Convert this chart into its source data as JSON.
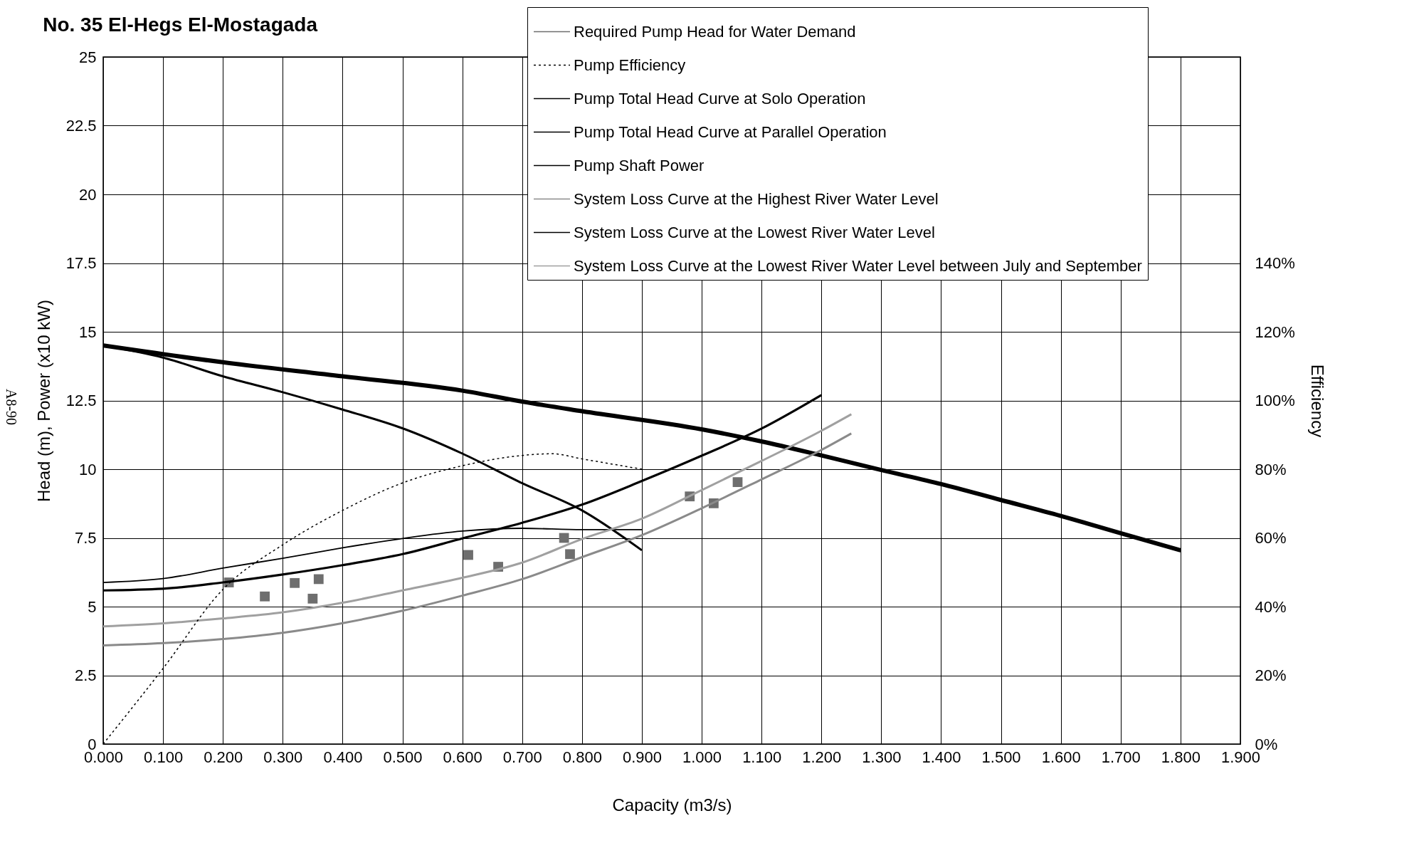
{
  "chart_data": {
    "type": "line",
    "title": "No. 35 El-Hegs El-Mostagada",
    "xlabel": "Capacity (m3/s)",
    "ylabel": "Head (m), Power (x10 kW)",
    "y2label": "Efficiency",
    "xlim": [
      0,
      1.9
    ],
    "xticks": [
      {
        "value": 0,
        "label": "0.000"
      },
      {
        "value": 0.1,
        "label": "0.100"
      },
      {
        "value": 0.2,
        "label": "0.200"
      },
      {
        "value": 0.3,
        "label": "0.300"
      },
      {
        "value": 0.4,
        "label": "0.400"
      },
      {
        "value": 0.5,
        "label": "0.500"
      },
      {
        "value": 0.6,
        "label": "0.600"
      },
      {
        "value": 0.7,
        "label": "0.700"
      },
      {
        "value": 0.8,
        "label": "0.800"
      },
      {
        "value": 0.9,
        "label": "0.900"
      },
      {
        "value": 1.0,
        "label": "1.000"
      },
      {
        "value": 1.1,
        "label": "1.100"
      },
      {
        "value": 1.2,
        "label": "1.200"
      },
      {
        "value": 1.3,
        "label": "1.300"
      },
      {
        "value": 1.4,
        "label": "1.400"
      },
      {
        "value": 1.5,
        "label": "1.500"
      },
      {
        "value": 1.6,
        "label": "1.600"
      },
      {
        "value": 1.7,
        "label": "1.700"
      },
      {
        "value": 1.8,
        "label": "1.800"
      },
      {
        "value": 1.9,
        "label": "1.900"
      }
    ],
    "ylim": [
      0,
      25
    ],
    "yticks": [
      0,
      2.5,
      5,
      7.5,
      10,
      12.5,
      15,
      17.5,
      20,
      22.5,
      25
    ],
    "y2lim": [
      0,
      200
    ],
    "y2ticks": [
      {
        "value": 0,
        "label": "0%"
      },
      {
        "value": 20,
        "label": "20%"
      },
      {
        "value": 40,
        "label": "40%"
      },
      {
        "value": 60,
        "label": "60%"
      },
      {
        "value": 80,
        "label": "80%"
      },
      {
        "value": 100,
        "label": "100%"
      },
      {
        "value": 120,
        "label": "120%"
      },
      {
        "value": 140,
        "label": "140%"
      }
    ],
    "grid": true,
    "legend": "top right",
    "series": [
      {
        "name": "Required Pump Head for Water Demand",
        "type": "scatter",
        "marker": "square",
        "color": "#6e6e6e",
        "x": [
          0.21,
          0.27,
          0.32,
          0.36,
          0.35,
          0.61,
          0.66,
          0.77,
          0.78,
          0.98,
          1.02,
          1.06
        ],
        "values": [
          5.88,
          5.37,
          5.86,
          6.0,
          5.29,
          6.88,
          6.45,
          7.5,
          6.91,
          9.01,
          8.76,
          9.53
        ]
      },
      {
        "name": "Pump Efficiency",
        "type": "line",
        "axis": "y2",
        "line_style": "dotted",
        "color": "#000000",
        "x": [
          0,
          0.1,
          0.2,
          0.3,
          0.4,
          0.5,
          0.6,
          0.7,
          0.75,
          0.8,
          0.9
        ],
        "values": [
          0,
          22,
          45,
          58,
          68,
          76,
          81,
          84,
          84.5,
          83,
          80
        ]
      },
      {
        "name": "Pump Total Head Curve at Solo Operation",
        "type": "line",
        "color": "#000000",
        "x": [
          0,
          0.1,
          0.2,
          0.3,
          0.4,
          0.5,
          0.6,
          0.7,
          0.8,
          0.9
        ],
        "values": [
          14.5,
          14.06,
          13.38,
          12.8,
          12.17,
          11.49,
          10.57,
          9.49,
          8.5,
          7.05
        ]
      },
      {
        "name": "Pump Total Head Curve at Parallel Operation",
        "type": "line",
        "color": "#000000",
        "x": [
          0,
          0.2,
          0.4,
          0.6,
          0.7,
          0.8,
          1.0,
          1.1,
          1.2,
          1.3,
          1.4,
          1.5,
          1.6,
          1.7,
          1.8
        ],
        "values": [
          14.5,
          13.89,
          13.38,
          12.86,
          12.46,
          12.11,
          11.45,
          11.01,
          10.5,
          9.97,
          9.46,
          8.88,
          8.3,
          7.67,
          7.05
        ]
      },
      {
        "name": "Pump Shaft Power",
        "type": "line",
        "color": "#000000",
        "x": [
          0,
          0.1,
          0.2,
          0.3,
          0.4,
          0.5,
          0.6,
          0.7,
          0.8,
          0.9
        ],
        "values": [
          5.88,
          6.02,
          6.4,
          6.76,
          7.14,
          7.48,
          7.75,
          7.85,
          7.8,
          7.8
        ]
      },
      {
        "name": "System Loss Curve at the Highest River Water Level",
        "type": "line",
        "color": "#8a8a8a",
        "x": [
          0,
          0.1,
          0.2,
          0.3,
          0.4,
          0.5,
          0.6,
          0.7,
          0.8,
          0.9,
          1.0,
          1.1,
          1.2,
          1.25
        ],
        "values": [
          3.59,
          3.67,
          3.82,
          4.05,
          4.4,
          4.85,
          5.4,
          6.0,
          6.8,
          7.6,
          8.58,
          9.63,
          10.7,
          11.3
        ]
      },
      {
        "name": "System Loss Curve at the Lowest River Water Level",
        "type": "line",
        "color": "#000000",
        "x": [
          0,
          0.1,
          0.2,
          0.3,
          0.4,
          0.5,
          0.6,
          0.7,
          0.8,
          0.9,
          1.0,
          1.1,
          1.2
        ],
        "values": [
          5.59,
          5.65,
          5.88,
          6.17,
          6.51,
          6.91,
          7.48,
          8.05,
          8.71,
          9.57,
          10.49,
          11.48,
          12.7
        ]
      },
      {
        "name": "System Loss Curve at the Lowest River Water Level between July and September",
        "type": "line",
        "color": "#a0a0a0",
        "x": [
          0,
          0.1,
          0.2,
          0.3,
          0.4,
          0.5,
          0.6,
          0.7,
          0.8,
          0.9,
          1.0,
          1.1,
          1.2,
          1.25
        ],
        "values": [
          4.28,
          4.39,
          4.57,
          4.79,
          5.14,
          5.59,
          6.05,
          6.6,
          7.46,
          8.2,
          9.24,
          10.3,
          11.4,
          12.0
        ]
      }
    ],
    "annotations": [
      "A8-90"
    ]
  }
}
